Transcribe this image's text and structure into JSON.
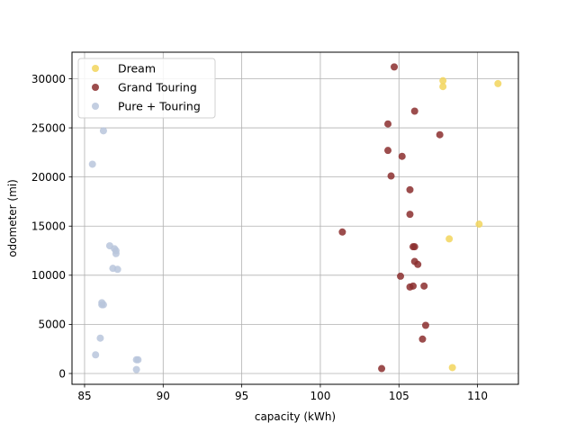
{
  "chart_data": {
    "type": "scatter",
    "title": "",
    "xlabel": "capacity (kWh)",
    "ylabel": "odometer (mi)",
    "xlim": [
      84.2,
      112.6
    ],
    "ylim": [
      -1100,
      32700
    ],
    "xticks": [
      85,
      90,
      95,
      100,
      105,
      110
    ],
    "yticks": [
      0,
      5000,
      10000,
      15000,
      20000,
      25000,
      30000
    ],
    "grid": true,
    "legend_position": "top-left",
    "series": [
      {
        "name": "Dream",
        "color": "#f2d55c",
        "points": [
          [
            107.8,
            29800
          ],
          [
            107.8,
            29200
          ],
          [
            111.3,
            29500
          ],
          [
            110.1,
            15200
          ],
          [
            108.2,
            13700
          ],
          [
            108.4,
            600
          ]
        ]
      },
      {
        "name": "Grand Touring",
        "color": "#8b2e2e",
        "points": [
          [
            104.7,
            31200
          ],
          [
            106.0,
            26700
          ],
          [
            104.3,
            25400
          ],
          [
            107.6,
            24300
          ],
          [
            104.3,
            22700
          ],
          [
            105.2,
            22100
          ],
          [
            104.5,
            20100
          ],
          [
            105.7,
            18700
          ],
          [
            105.7,
            16200
          ],
          [
            101.4,
            14400
          ],
          [
            105.9,
            12900
          ],
          [
            106.0,
            12900
          ],
          [
            106.0,
            11400
          ],
          [
            106.2,
            11100
          ],
          [
            105.1,
            9900
          ],
          [
            105.9,
            8900
          ],
          [
            106.6,
            8900
          ],
          [
            105.7,
            8800
          ],
          [
            106.7,
            4900
          ],
          [
            106.5,
            3500
          ],
          [
            103.9,
            500
          ]
        ]
      },
      {
        "name": "Pure + Touring",
        "color": "#b8c6dc",
        "points": [
          [
            86.2,
            24700
          ],
          [
            85.5,
            21300
          ],
          [
            86.6,
            13000
          ],
          [
            86.9,
            12700
          ],
          [
            87.0,
            12500
          ],
          [
            87.0,
            12200
          ],
          [
            86.8,
            10700
          ],
          [
            87.1,
            10600
          ],
          [
            86.1,
            7200
          ],
          [
            86.1,
            7000
          ],
          [
            86.2,
            7000
          ],
          [
            86.0,
            3600
          ],
          [
            85.7,
            1900
          ],
          [
            88.3,
            1400
          ],
          [
            88.4,
            1400
          ],
          [
            88.3,
            400
          ]
        ]
      }
    ]
  }
}
